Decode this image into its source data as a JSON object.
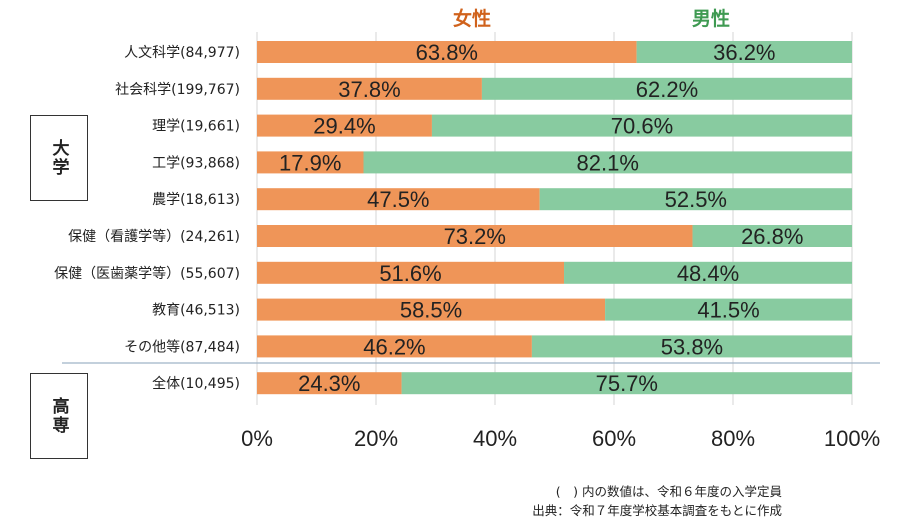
{
  "chart_data": {
    "type": "bar",
    "orientation": "horizontal",
    "stacked": true,
    "percent_stacked": true,
    "categories": [
      "人文科学(84,977)",
      "社会科学(199,767)",
      "理学(19,661)",
      "工学(93,868)",
      "農学(18,613)",
      "保健（看護学等）(24,261)",
      "保健（医歯薬学等）(55,607)",
      "教育(46,513)",
      "その他等(87,484)",
      "全体(10,495)"
    ],
    "series": [
      {
        "name": "女性",
        "values": [
          63.8,
          37.8,
          29.4,
          17.9,
          47.5,
          73.2,
          51.6,
          58.5,
          46.2,
          24.3
        ]
      },
      {
        "name": "男性",
        "values": [
          36.2,
          62.2,
          70.6,
          82.1,
          52.5,
          26.8,
          48.4,
          41.5,
          53.8,
          75.7
        ]
      }
    ],
    "xlim": [
      0,
      100
    ],
    "x_ticks": [
      "0%",
      "20%",
      "40%",
      "60%",
      "80%",
      "100%"
    ],
    "grid": true,
    "legend_position": "top",
    "group_labels": [
      {
        "label": "大学",
        "rows": [
          0,
          8
        ]
      },
      {
        "label": "高専",
        "rows": [
          9,
          9
        ]
      }
    ]
  },
  "colors": {
    "female": "#ef9558",
    "male": "#88cba0",
    "female_legend": "#d0621c",
    "male_legend": "#3f9a52",
    "grid": "#d4d4d4"
  },
  "footnotes": {
    "line1": "(　) 内の数値は、令和６年度の入学定員",
    "line2": "出典：令和７年度学校基本調査をもとに作成"
  }
}
